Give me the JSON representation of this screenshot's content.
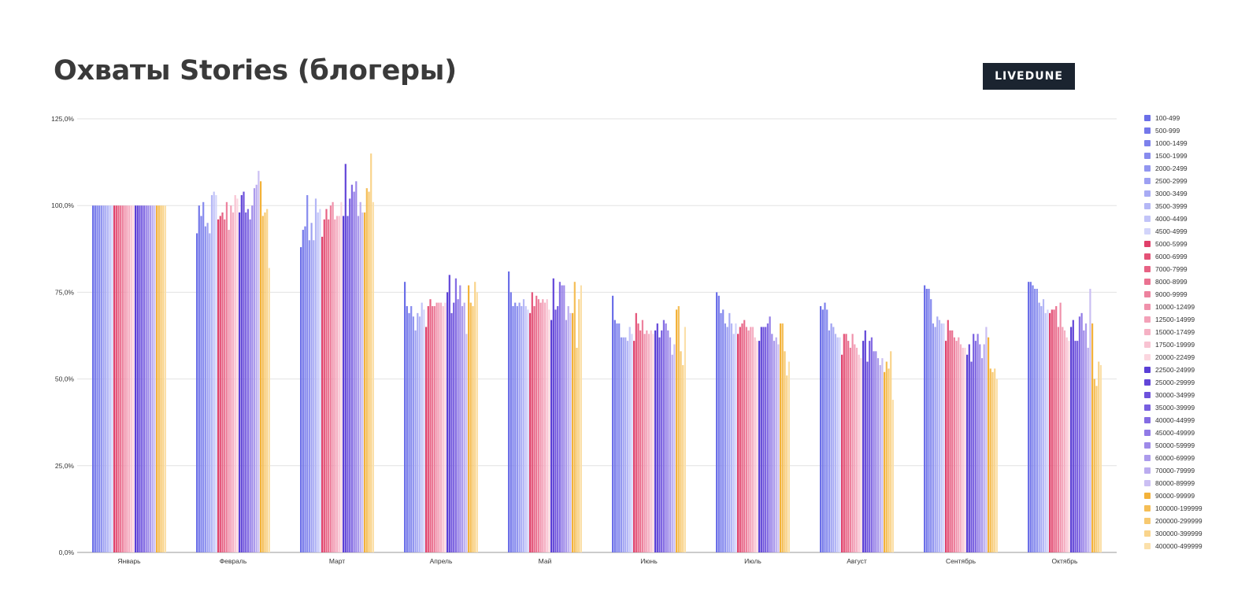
{
  "header": {
    "title": "Охваты Stories (блогеры)",
    "logo_text": "LIVEDUNE"
  },
  "chart_data": {
    "type": "bar",
    "title": "Охваты Stories (блогеры)",
    "xlabel": "",
    "ylabel": "",
    "ylim": [
      0,
      125
    ],
    "yticks": [
      "0,0%",
      "25,0%",
      "50,0%",
      "75,0%",
      "100,0%",
      "125,0%"
    ],
    "grid": true,
    "legend_position": "right",
    "categories": [
      "Январь",
      "Февраль",
      "Март",
      "Апрель",
      "Май",
      "Июнь",
      "Июль",
      "Август",
      "Сентябрь",
      "Октябрь"
    ],
    "series": [
      {
        "name": "100-499",
        "color": "#6b6fe8",
        "values": [
          100,
          92,
          88,
          78,
          81,
          74,
          75,
          71,
          77,
          78
        ]
      },
      {
        "name": "500-999",
        "color": "#7478ea",
        "values": [
          100,
          100,
          93,
          71,
          75,
          67,
          74,
          70,
          76,
          78
        ]
      },
      {
        "name": "1000-1499",
        "color": "#7d81ec",
        "values": [
          100,
          97,
          94,
          69,
          71,
          66,
          69,
          72,
          76,
          77
        ]
      },
      {
        "name": "1500-1999",
        "color": "#878bee",
        "values": [
          100,
          101,
          103,
          71,
          72,
          66,
          70,
          70,
          73,
          76
        ]
      },
      {
        "name": "2000-2499",
        "color": "#9296f0",
        "values": [
          100,
          94,
          90,
          68,
          71,
          62,
          66,
          64,
          66,
          76
        ]
      },
      {
        "name": "2500-2999",
        "color": "#9da0f2",
        "values": [
          100,
          95,
          95,
          64,
          72,
          62,
          65,
          66,
          65,
          72
        ]
      },
      {
        "name": "3000-3499",
        "color": "#a8abf4",
        "values": [
          100,
          92,
          90,
          69,
          71,
          62,
          69,
          65,
          68,
          71
        ]
      },
      {
        "name": "3500-3999",
        "color": "#b4b7f6",
        "values": [
          100,
          103,
          102,
          68,
          73,
          61,
          66,
          63,
          67,
          73
        ]
      },
      {
        "name": "4000-4499",
        "color": "#c2c4f8",
        "values": [
          100,
          104,
          98,
          72,
          71,
          65,
          63,
          62,
          66,
          69
        ]
      },
      {
        "name": "4500-4999",
        "color": "#d2d4fa",
        "values": [
          100,
          103,
          99,
          70,
          70,
          63,
          66,
          62,
          66,
          70
        ]
      },
      {
        "name": "5000-5999",
        "color": "#e0406a",
        "values": [
          100,
          96,
          91,
          65,
          69,
          61,
          63,
          57,
          61,
          69
        ]
      },
      {
        "name": "6000-6999",
        "color": "#e45277",
        "values": [
          100,
          97,
          96,
          71,
          75,
          69,
          65,
          63,
          67,
          70
        ]
      },
      {
        "name": "7000-7999",
        "color": "#e76284",
        "values": [
          100,
          98,
          99,
          73,
          71,
          66,
          66,
          63,
          64,
          70
        ]
      },
      {
        "name": "8000-8999",
        "color": "#ea7291",
        "values": [
          100,
          96,
          96,
          71,
          74,
          64,
          67,
          61,
          64,
          71
        ]
      },
      {
        "name": "9000-9999",
        "color": "#ed829e",
        "values": [
          100,
          101,
          100,
          71,
          73,
          67,
          65,
          59,
          62,
          65
        ]
      },
      {
        "name": "10000-12499",
        "color": "#f091ab",
        "values": [
          100,
          93,
          101,
          72,
          72,
          63,
          64,
          63,
          61,
          72
        ]
      },
      {
        "name": "12500-14999",
        "color": "#f3a1b8",
        "values": [
          100,
          100,
          96,
          72,
          73,
          64,
          65,
          60,
          62,
          65
        ]
      },
      {
        "name": "15000-17499",
        "color": "#f5b1c4",
        "values": [
          100,
          98,
          97,
          72,
          72,
          63,
          65,
          59,
          60,
          64
        ]
      },
      {
        "name": "17500-19999",
        "color": "#f8c3d2",
        "values": [
          100,
          103,
          97,
          71,
          73,
          64,
          62,
          57,
          59,
          62
        ]
      },
      {
        "name": "20000-22499",
        "color": "#fbd6df",
        "values": [
          100,
          102,
          101,
          72,
          70,
          63,
          61,
          56,
          59,
          61
        ]
      },
      {
        "name": "22500-24999",
        "color": "#5a3fd6",
        "values": [
          100,
          98,
          97,
          75,
          67,
          64,
          61,
          61,
          57,
          65
        ]
      },
      {
        "name": "25000-29999",
        "color": "#6246d8",
        "values": [
          100,
          103,
          112,
          80,
          79,
          66,
          65,
          64,
          60,
          67
        ]
      },
      {
        "name": "30000-34999",
        "color": "#6d52dc",
        "values": [
          100,
          104,
          97,
          69,
          70,
          62,
          65,
          55,
          55,
          61
        ]
      },
      {
        "name": "35000-39999",
        "color": "#785fe0",
        "values": [
          100,
          98,
          102,
          72,
          71,
          64,
          65,
          61,
          63,
          61
        ]
      },
      {
        "name": "40000-44999",
        "color": "#846ce3",
        "values": [
          100,
          99,
          106,
          79,
          78,
          67,
          66,
          62,
          61,
          68
        ]
      },
      {
        "name": "45000-49999",
        "color": "#917be6",
        "values": [
          100,
          96,
          104,
          73,
          77,
          66,
          68,
          58,
          63,
          69
        ]
      },
      {
        "name": "50000-59999",
        "color": "#9e8ae9",
        "values": [
          100,
          100,
          107,
          77,
          77,
          64,
          63,
          58,
          60,
          64
        ]
      },
      {
        "name": "60000-69999",
        "color": "#ac9bec",
        "values": [
          100,
          105,
          97,
          71,
          67,
          62,
          61,
          56,
          56,
          66
        ]
      },
      {
        "name": "70000-79999",
        "color": "#bbacef",
        "values": [
          100,
          106,
          101,
          72,
          71,
          57,
          62,
          54,
          60,
          59
        ]
      },
      {
        "name": "80000-89999",
        "color": "#cbbff3",
        "values": [
          100,
          110,
          98,
          63,
          69,
          60,
          60,
          56,
          65,
          76
        ]
      },
      {
        "name": "90000-99999",
        "color": "#f3b23a",
        "values": [
          100,
          107,
          98,
          77,
          69,
          70,
          66,
          52,
          62,
          66
        ]
      },
      {
        "name": "100000-199999",
        "color": "#f5be56",
        "values": [
          100,
          97,
          105,
          72,
          78,
          71,
          66,
          55,
          53,
          50
        ]
      },
      {
        "name": "200000-299999",
        "color": "#f7c970",
        "values": [
          100,
          98,
          104,
          71,
          59,
          58,
          58,
          53,
          52,
          48
        ]
      },
      {
        "name": "300000-399999",
        "color": "#f9d48c",
        "values": [
          100,
          99,
          115,
          78,
          73,
          54,
          51,
          58,
          53,
          55
        ]
      },
      {
        "name": "400000-499999",
        "color": "#fbe0aa",
        "values": [
          100,
          82,
          101,
          75,
          77,
          65,
          55,
          44,
          50,
          54
        ]
      }
    ]
  }
}
